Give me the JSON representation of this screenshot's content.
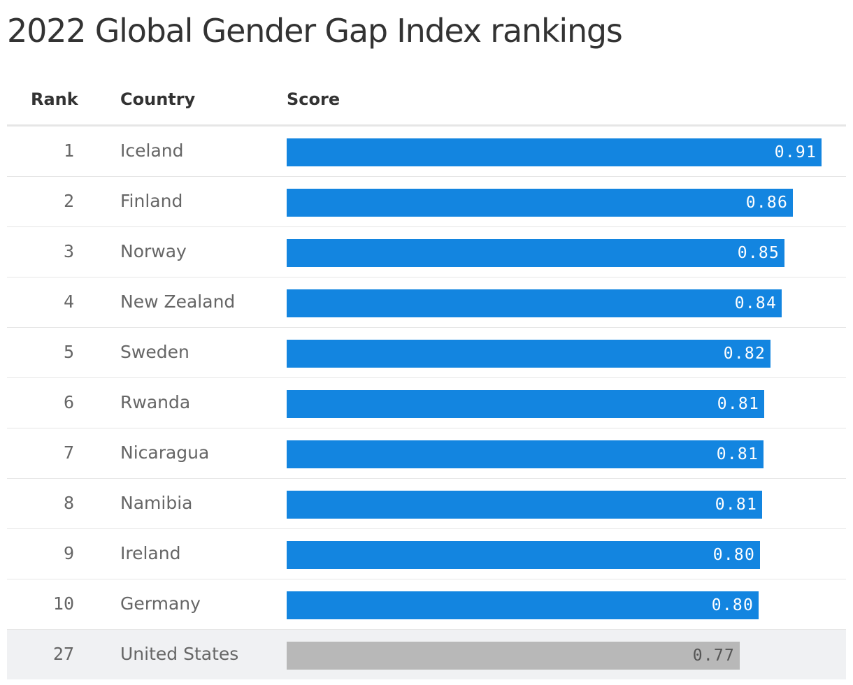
{
  "title": "2022 Global Gender Gap Index rankings",
  "columns": {
    "rank": "Rank",
    "country": "Country",
    "score": "Score"
  },
  "colors": {
    "bar": "#1385e0",
    "highlight_bar": "#b8b8b8",
    "bar_label": "#ffffff",
    "highlight_label": "#555555"
  },
  "chart_data": {
    "type": "bar",
    "orientation": "horizontal",
    "title": "2022 Global Gender Gap Index rankings",
    "categories": [
      "Iceland",
      "Finland",
      "Norway",
      "New Zealand",
      "Sweden",
      "Rwanda",
      "Nicaragua",
      "Namibia",
      "Ireland",
      "Germany",
      "United States"
    ],
    "values": [
      0.908,
      0.86,
      0.845,
      0.841,
      0.822,
      0.811,
      0.81,
      0.807,
      0.804,
      0.801,
      0.769
    ],
    "xlim": [
      0,
      0.95
    ],
    "grid": false,
    "legend": "none",
    "rows": [
      {
        "rank": "1",
        "country": "Iceland",
        "score": 0.908,
        "label": "0.91",
        "highlight": false
      },
      {
        "rank": "2",
        "country": "Finland",
        "score": 0.86,
        "label": "0.86",
        "highlight": false
      },
      {
        "rank": "3",
        "country": "Norway",
        "score": 0.845,
        "label": "0.85",
        "highlight": false
      },
      {
        "rank": "4",
        "country": "New Zealand",
        "score": 0.841,
        "label": "0.84",
        "highlight": false
      },
      {
        "rank": "5",
        "country": "Sweden",
        "score": 0.822,
        "label": "0.82",
        "highlight": false
      },
      {
        "rank": "6",
        "country": "Rwanda",
        "score": 0.811,
        "label": "0.81",
        "highlight": false
      },
      {
        "rank": "7",
        "country": "Nicaragua",
        "score": 0.81,
        "label": "0.81",
        "highlight": false
      },
      {
        "rank": "8",
        "country": "Namibia",
        "score": 0.807,
        "label": "0.81",
        "highlight": false
      },
      {
        "rank": "9",
        "country": "Ireland",
        "score": 0.804,
        "label": "0.80",
        "highlight": false
      },
      {
        "rank": "10",
        "country": "Germany",
        "score": 0.801,
        "label": "0.80",
        "highlight": false
      },
      {
        "rank": "27",
        "country": "United States",
        "score": 0.769,
        "label": "0.77",
        "highlight": true
      }
    ]
  }
}
